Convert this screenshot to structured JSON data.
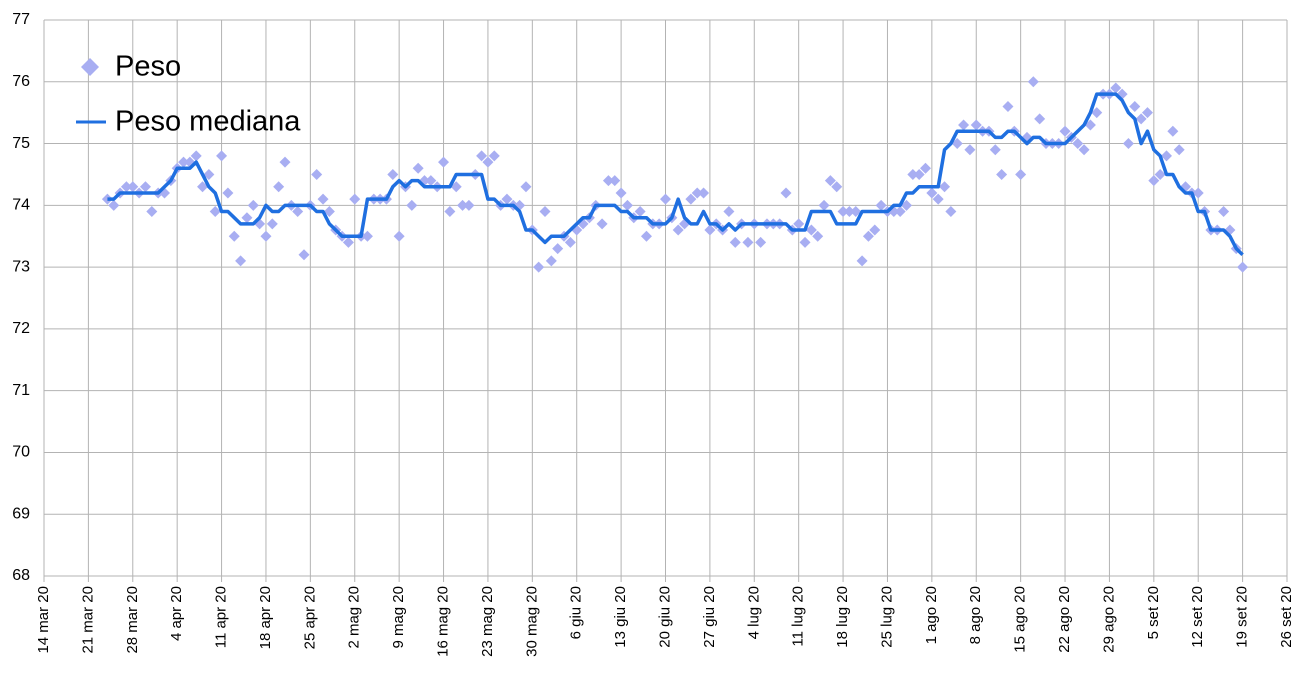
{
  "chart_data": {
    "type": "line",
    "legend": "top-left",
    "grid": true,
    "ylim": [
      68,
      77
    ],
    "yticks": [
      68,
      69,
      70,
      71,
      72,
      73,
      74,
      75,
      76,
      77
    ],
    "xlim": [
      "2020-03-14",
      "2020-09-26"
    ],
    "xticks": [
      {
        "value": "2020-03-14",
        "label": "14 mar 20"
      },
      {
        "value": "2020-03-21",
        "label": "21 mar 20"
      },
      {
        "value": "2020-03-28",
        "label": "28 mar 20"
      },
      {
        "value": "2020-04-04",
        "label": "4 apr 20"
      },
      {
        "value": "2020-04-11",
        "label": "11 apr 20"
      },
      {
        "value": "2020-04-18",
        "label": "18 apr 20"
      },
      {
        "value": "2020-04-25",
        "label": "25 apr 20"
      },
      {
        "value": "2020-05-02",
        "label": "2 mag 20"
      },
      {
        "value": "2020-05-09",
        "label": "9 mag 20"
      },
      {
        "value": "2020-05-16",
        "label": "16 mag 20"
      },
      {
        "value": "2020-05-23",
        "label": "23 mag 20"
      },
      {
        "value": "2020-05-30",
        "label": "30 mag 20"
      },
      {
        "value": "2020-06-06",
        "label": "6 giu 20"
      },
      {
        "value": "2020-06-13",
        "label": "13 giu 20"
      },
      {
        "value": "2020-06-20",
        "label": "20 giu 20"
      },
      {
        "value": "2020-06-27",
        "label": "27 giu 20"
      },
      {
        "value": "2020-07-04",
        "label": "4 lug 20"
      },
      {
        "value": "2020-07-11",
        "label": "11 lug 20"
      },
      {
        "value": "2020-07-18",
        "label": "18 lug 20"
      },
      {
        "value": "2020-07-25",
        "label": "25 lug 20"
      },
      {
        "value": "2020-08-01",
        "label": "1 ago 20"
      },
      {
        "value": "2020-08-08",
        "label": "8 ago 20"
      },
      {
        "value": "2020-08-15",
        "label": "15 ago 20"
      },
      {
        "value": "2020-08-22",
        "label": "22 ago 20"
      },
      {
        "value": "2020-08-29",
        "label": "29 ago 20"
      },
      {
        "value": "2020-09-05",
        "label": "5 set 20"
      },
      {
        "value": "2020-09-12",
        "label": "12 set 20"
      },
      {
        "value": "2020-09-19",
        "label": "19 set 20"
      },
      {
        "value": "2020-09-26",
        "label": "26 set 20"
      }
    ],
    "x": [
      "2020-03-24",
      "2020-03-25",
      "2020-03-26",
      "2020-03-27",
      "2020-03-28",
      "2020-03-29",
      "2020-03-30",
      "2020-03-31",
      "2020-04-01",
      "2020-04-02",
      "2020-04-03",
      "2020-04-04",
      "2020-04-05",
      "2020-04-06",
      "2020-04-07",
      "2020-04-08",
      "2020-04-09",
      "2020-04-10",
      "2020-04-11",
      "2020-04-12",
      "2020-04-13",
      "2020-04-14",
      "2020-04-15",
      "2020-04-16",
      "2020-04-17",
      "2020-04-18",
      "2020-04-19",
      "2020-04-20",
      "2020-04-21",
      "2020-04-22",
      "2020-04-23",
      "2020-04-24",
      "2020-04-25",
      "2020-04-26",
      "2020-04-27",
      "2020-04-28",
      "2020-04-29",
      "2020-04-30",
      "2020-05-01",
      "2020-05-02",
      "2020-05-03",
      "2020-05-04",
      "2020-05-05",
      "2020-05-06",
      "2020-05-07",
      "2020-05-08",
      "2020-05-09",
      "2020-05-10",
      "2020-05-11",
      "2020-05-12",
      "2020-05-13",
      "2020-05-14",
      "2020-05-15",
      "2020-05-16",
      "2020-05-17",
      "2020-05-18",
      "2020-05-19",
      "2020-05-20",
      "2020-05-21",
      "2020-05-22",
      "2020-05-23",
      "2020-05-24",
      "2020-05-25",
      "2020-05-26",
      "2020-05-27",
      "2020-05-28",
      "2020-05-29",
      "2020-05-30",
      "2020-05-31",
      "2020-06-01",
      "2020-06-02",
      "2020-06-03",
      "2020-06-04",
      "2020-06-05",
      "2020-06-06",
      "2020-06-07",
      "2020-06-08",
      "2020-06-09",
      "2020-06-10",
      "2020-06-11",
      "2020-06-12",
      "2020-06-13",
      "2020-06-14",
      "2020-06-15",
      "2020-06-16",
      "2020-06-17",
      "2020-06-18",
      "2020-06-19",
      "2020-06-20",
      "2020-06-21",
      "2020-06-22",
      "2020-06-23",
      "2020-06-24",
      "2020-06-25",
      "2020-06-26",
      "2020-06-27",
      "2020-06-28",
      "2020-06-29",
      "2020-06-30",
      "2020-07-01",
      "2020-07-02",
      "2020-07-03",
      "2020-07-04",
      "2020-07-05",
      "2020-07-06",
      "2020-07-07",
      "2020-07-08",
      "2020-07-09",
      "2020-07-10",
      "2020-07-11",
      "2020-07-12",
      "2020-07-13",
      "2020-07-14",
      "2020-07-15",
      "2020-07-16",
      "2020-07-17",
      "2020-07-18",
      "2020-07-19",
      "2020-07-20",
      "2020-07-21",
      "2020-07-22",
      "2020-07-23",
      "2020-07-24",
      "2020-07-25",
      "2020-07-26",
      "2020-07-27",
      "2020-07-28",
      "2020-07-29",
      "2020-07-30",
      "2020-07-31",
      "2020-08-01",
      "2020-08-02",
      "2020-08-03",
      "2020-08-04",
      "2020-08-05",
      "2020-08-06",
      "2020-08-07",
      "2020-08-08",
      "2020-08-09",
      "2020-08-10",
      "2020-08-11",
      "2020-08-12",
      "2020-08-13",
      "2020-08-14",
      "2020-08-15",
      "2020-08-16",
      "2020-08-17",
      "2020-08-18",
      "2020-08-19",
      "2020-08-20",
      "2020-08-21",
      "2020-08-22",
      "2020-08-23",
      "2020-08-24",
      "2020-08-25",
      "2020-08-26",
      "2020-08-27",
      "2020-08-28",
      "2020-08-29",
      "2020-08-30",
      "2020-08-31",
      "2020-09-01",
      "2020-09-02",
      "2020-09-03",
      "2020-09-04",
      "2020-09-05",
      "2020-09-06",
      "2020-09-07",
      "2020-09-08",
      "2020-09-09",
      "2020-09-10",
      "2020-09-11",
      "2020-09-12",
      "2020-09-13",
      "2020-09-14",
      "2020-09-15",
      "2020-09-16",
      "2020-09-17",
      "2020-09-18",
      "2020-09-19"
    ],
    "series": [
      {
        "name": "Peso",
        "kind": "scatter",
        "color": "#a8aef2",
        "values": [
          74.1,
          74.0,
          74.2,
          74.3,
          74.3,
          74.2,
          74.3,
          73.9,
          74.2,
          74.2,
          74.4,
          74.6,
          74.7,
          74.7,
          74.8,
          74.3,
          74.5,
          73.9,
          74.8,
          74.2,
          73.5,
          73.1,
          73.8,
          74.0,
          73.7,
          73.5,
          73.7,
          74.3,
          74.7,
          74.0,
          73.9,
          73.2,
          74.0,
          74.5,
          74.1,
          73.9,
          73.6,
          73.5,
          73.4,
          74.1,
          73.5,
          73.5,
          74.1,
          74.1,
          74.1,
          74.5,
          73.5,
          74.3,
          74.0,
          74.6,
          74.4,
          74.4,
          74.3,
          74.7,
          73.9,
          74.3,
          74.0,
          74.0,
          74.5,
          74.8,
          74.7,
          74.8,
          74.0,
          74.1,
          74.0,
          74.0,
          74.3,
          73.6,
          73.0,
          73.9,
          73.1,
          73.3,
          73.5,
          73.4,
          73.6,
          73.7,
          73.8,
          74.0,
          73.7,
          74.4,
          74.4,
          74.2,
          74.0,
          73.8,
          73.9,
          73.5,
          73.7,
          73.7,
          74.1,
          73.8,
          73.6,
          73.7,
          74.1,
          74.2,
          74.2,
          73.6,
          73.7,
          73.6,
          73.9,
          73.4,
          73.7,
          73.4,
          73.7,
          73.4,
          73.7,
          73.7,
          73.7,
          74.2,
          73.6,
          73.7,
          73.4,
          73.6,
          73.5,
          74.0,
          74.4,
          74.3,
          73.9,
          73.9,
          73.9,
          73.1,
          73.5,
          73.6,
          74.0,
          73.9,
          73.9,
          73.9,
          74.0,
          74.5,
          74.5,
          74.6,
          74.2,
          74.1,
          74.3,
          73.9,
          75.0,
          75.3,
          74.9,
          75.3,
          75.2,
          75.2,
          74.9,
          74.5,
          75.6,
          75.2,
          74.5,
          75.1,
          76.0,
          75.4,
          75.0,
          75.0,
          75.0,
          75.2,
          75.1,
          75.0,
          74.9,
          75.3,
          75.5,
          75.8,
          75.8,
          75.9,
          75.8,
          75.0,
          75.6,
          75.4,
          75.5,
          74.4,
          74.5,
          74.8,
          75.2,
          74.9,
          74.3,
          74.2,
          74.2,
          73.9,
          73.6,
          73.6,
          73.9,
          73.6,
          73.3,
          73.0
        ]
      },
      {
        "name": "Peso mediana",
        "kind": "line",
        "color": "#1f6fe0",
        "values": [
          74.1,
          74.1,
          74.2,
          74.2,
          74.2,
          74.2,
          74.2,
          74.2,
          74.2,
          74.3,
          74.4,
          74.6,
          74.6,
          74.6,
          74.7,
          74.5,
          74.3,
          74.2,
          73.9,
          73.9,
          73.8,
          73.7,
          73.7,
          73.7,
          73.8,
          74.0,
          73.9,
          73.9,
          74.0,
          74.0,
          74.0,
          74.0,
          74.0,
          73.9,
          73.9,
          73.7,
          73.6,
          73.5,
          73.5,
          73.5,
          73.5,
          74.1,
          74.1,
          74.1,
          74.1,
          74.3,
          74.4,
          74.3,
          74.4,
          74.4,
          74.3,
          74.3,
          74.3,
          74.3,
          74.3,
          74.5,
          74.5,
          74.5,
          74.5,
          74.5,
          74.1,
          74.1,
          74.0,
          74.0,
          74.0,
          73.9,
          73.6,
          73.6,
          73.5,
          73.4,
          73.5,
          73.5,
          73.5,
          73.6,
          73.7,
          73.8,
          73.8,
          74.0,
          74.0,
          74.0,
          74.0,
          73.9,
          73.9,
          73.8,
          73.8,
          73.8,
          73.7,
          73.7,
          73.7,
          73.8,
          74.1,
          73.8,
          73.7,
          73.7,
          73.9,
          73.7,
          73.7,
          73.6,
          73.7,
          73.6,
          73.7,
          73.7,
          73.7,
          73.7,
          73.7,
          73.7,
          73.7,
          73.7,
          73.6,
          73.6,
          73.6,
          73.9,
          73.9,
          73.9,
          73.9,
          73.7,
          73.7,
          73.7,
          73.7,
          73.9,
          73.9,
          73.9,
          73.9,
          73.9,
          74.0,
          74.0,
          74.2,
          74.2,
          74.3,
          74.3,
          74.3,
          74.3,
          74.9,
          75.0,
          75.2,
          75.2,
          75.2,
          75.2,
          75.2,
          75.2,
          75.1,
          75.1,
          75.2,
          75.2,
          75.1,
          75.0,
          75.1,
          75.1,
          75.0,
          75.0,
          75.0,
          75.0,
          75.1,
          75.2,
          75.3,
          75.5,
          75.8,
          75.8,
          75.8,
          75.8,
          75.7,
          75.5,
          75.4,
          75.0,
          75.2,
          74.9,
          74.8,
          74.5,
          74.5,
          74.3,
          74.2,
          74.2,
          73.9,
          73.9,
          73.6,
          73.6,
          73.6,
          73.5,
          73.3,
          73.2
        ]
      }
    ]
  }
}
